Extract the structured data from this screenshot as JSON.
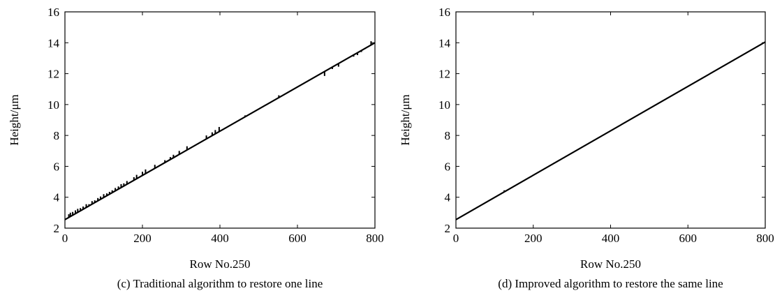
{
  "chart_data": [
    {
      "type": "line",
      "caption": "(c) Traditional algorithm to restore one line",
      "xlabel": "Row No.250",
      "ylabel": "Height/μm",
      "xlim": [
        0,
        800
      ],
      "ylim": [
        2,
        16
      ],
      "xticks": [
        0,
        200,
        400,
        600,
        800
      ],
      "yticks": [
        2,
        4,
        6,
        8,
        10,
        12,
        14,
        16
      ],
      "grid": false,
      "series": [
        {
          "x": [
            0,
            800
          ],
          "y": [
            2.55,
            14.0
          ]
        }
      ],
      "spikes": [
        [
          10,
          2.9
        ],
        [
          14,
          3.0
        ],
        [
          20,
          3.05
        ],
        [
          27,
          3.15
        ],
        [
          33,
          3.25
        ],
        [
          40,
          3.3
        ],
        [
          47,
          3.4
        ],
        [
          55,
          3.55
        ],
        [
          62,
          3.55
        ],
        [
          70,
          3.75
        ],
        [
          77,
          3.8
        ],
        [
          85,
          3.95
        ],
        [
          92,
          4.05
        ],
        [
          100,
          4.2
        ],
        [
          108,
          4.25
        ],
        [
          115,
          4.35
        ],
        [
          122,
          4.45
        ],
        [
          130,
          4.6
        ],
        [
          138,
          4.7
        ],
        [
          145,
          4.85
        ],
        [
          152,
          4.9
        ],
        [
          160,
          5.05
        ],
        [
          178,
          5.3
        ],
        [
          185,
          5.45
        ],
        [
          200,
          5.65
        ],
        [
          208,
          5.8
        ],
        [
          232,
          6.1
        ],
        [
          258,
          6.4
        ],
        [
          272,
          6.6
        ],
        [
          280,
          6.75
        ],
        [
          295,
          7.0
        ],
        [
          315,
          7.3
        ],
        [
          365,
          8.0
        ],
        [
          380,
          8.2
        ],
        [
          388,
          8.35
        ],
        [
          398,
          8.55
        ],
        [
          465,
          9.3
        ],
        [
          552,
          10.6
        ],
        [
          670,
          11.85
        ],
        [
          690,
          12.3
        ],
        [
          706,
          12.45
        ],
        [
          745,
          13.1
        ],
        [
          755,
          13.2
        ],
        [
          765,
          13.4
        ],
        [
          775,
          13.6
        ],
        [
          790,
          14.1
        ],
        [
          795,
          13.9
        ]
      ]
    },
    {
      "type": "line",
      "caption": "(d) Improved algorithm to restore the same line",
      "xlabel": "Row No.250",
      "ylabel": "Height/μm",
      "xlim": [
        0,
        800
      ],
      "ylim": [
        2,
        16
      ],
      "xticks": [
        0,
        200,
        400,
        600,
        800
      ],
      "yticks": [
        2,
        4,
        6,
        8,
        10,
        12,
        14,
        16
      ],
      "grid": false,
      "series": [
        {
          "x": [
            0,
            800
          ],
          "y": [
            2.55,
            14.05
          ]
        }
      ],
      "spikes": [
        [
          125,
          4.45
        ],
        [
          135,
          4.5
        ]
      ]
    }
  ]
}
